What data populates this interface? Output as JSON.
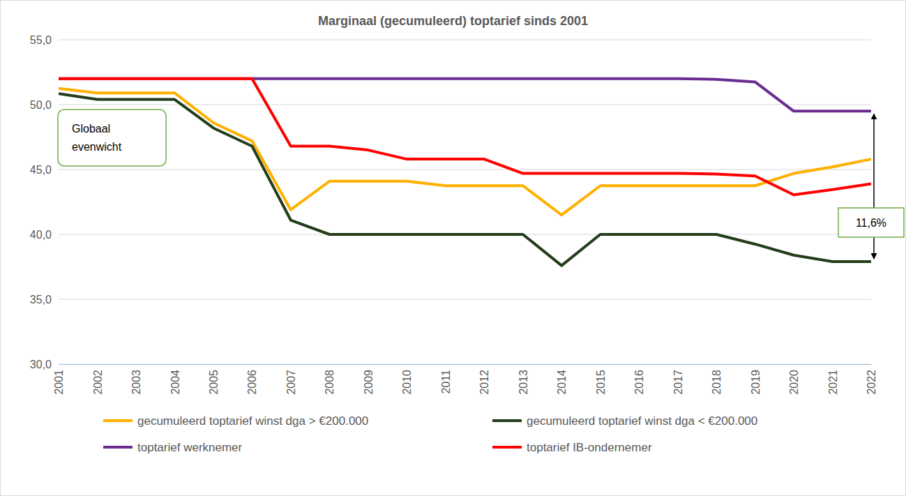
{
  "chart_data": {
    "type": "line",
    "title": "Marginaal (gecumuleerd) toptarief sinds 2001",
    "categories": [
      "2001",
      "2002",
      "2003",
      "2004",
      "2005",
      "2006",
      "2007",
      "2008",
      "2009",
      "2010",
      "2011",
      "2012",
      "2013",
      "2014",
      "2015",
      "2016",
      "2017",
      "2018",
      "2019",
      "2020",
      "2021",
      "2022"
    ],
    "series": [
      {
        "name": "gecumuleerd toptarief winst dga > €200.000",
        "color": "#ffb000",
        "values": [
          51.25,
          50.9,
          50.9,
          50.9,
          48.6,
          47.2,
          41.9,
          44.1,
          44.1,
          44.1,
          43.75,
          43.75,
          43.75,
          41.5,
          43.75,
          43.75,
          43.75,
          43.75,
          43.75,
          44.7,
          45.2,
          45.8
        ]
      },
      {
        "name": "gecumuleerd toptarief winst dga < €200.000",
        "color": "#233d1b",
        "values": [
          50.85,
          50.4,
          50.4,
          50.4,
          48.2,
          46.8,
          41.1,
          40.0,
          40.0,
          40.0,
          40.0,
          40.0,
          40.0,
          37.6,
          40.0,
          40.0,
          40.0,
          40.0,
          39.25,
          38.4,
          37.9,
          37.9
        ]
      },
      {
        "name": "toptarief werknemer",
        "color": "#6a2c91",
        "values": [
          52,
          52,
          52,
          52,
          52,
          52,
          52,
          52,
          52,
          52,
          52,
          52,
          52,
          52,
          52,
          52,
          52,
          51.95,
          51.75,
          49.5,
          49.5,
          49.5
        ]
      },
      {
        "name": "toptarief IB-ondernemer",
        "color": "#ff0000",
        "values": [
          52,
          52,
          52,
          52,
          52,
          52,
          46.8,
          46.8,
          46.5,
          45.8,
          45.8,
          45.8,
          44.7,
          44.7,
          44.7,
          44.7,
          44.7,
          44.65,
          44.5,
          43.05,
          43.45,
          43.9
        ]
      }
    ],
    "ylim": [
      30,
      55
    ],
    "yticks": [
      {
        "value": 30,
        "label": "30,0"
      },
      {
        "value": 35,
        "label": "35,0"
      },
      {
        "value": 40,
        "label": "40,0"
      },
      {
        "value": 45,
        "label": "45,0"
      },
      {
        "value": 50,
        "label": "50,0"
      },
      {
        "value": 55,
        "label": "55,0"
      }
    ],
    "grid": true,
    "legend": "bottom",
    "annotations": [
      {
        "text": "Globaal evenwicht"
      },
      {
        "text": "11,6%"
      }
    ]
  }
}
